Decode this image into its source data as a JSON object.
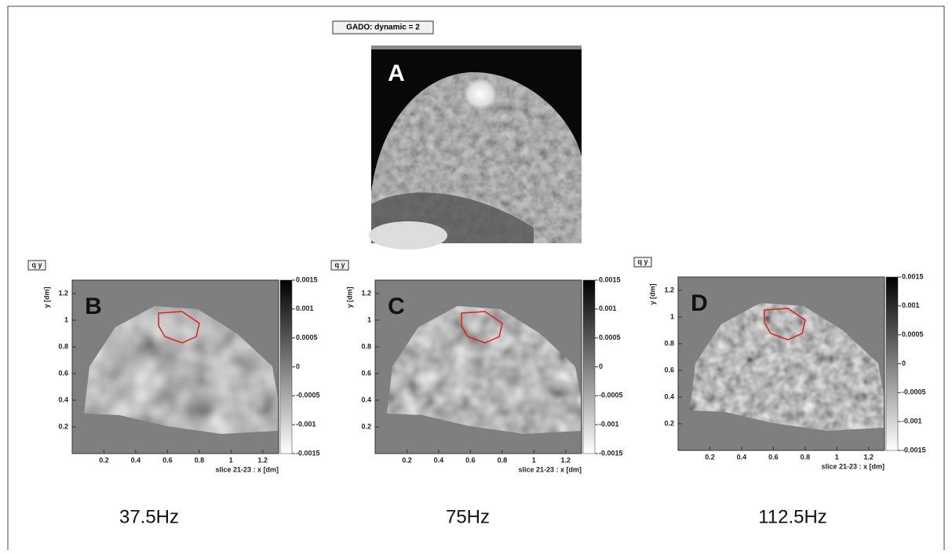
{
  "top_image": {
    "title": "GADO: dynamic = 2",
    "letter": "A"
  },
  "panels": [
    {
      "title": "q y",
      "letter": "B",
      "caption": "37.5Hz",
      "y_label": "y [dm]",
      "x_label": "slice 21-23 : x [dm]",
      "xlim": [
        0,
        1.3
      ],
      "ylim": [
        0,
        1.3
      ],
      "zlim": [
        -0.0015,
        0.0015
      ],
      "xticks": [
        0.2,
        0.4,
        0.6,
        0.8,
        1,
        1.2
      ],
      "yticks": [
        0.2,
        0.4,
        0.6,
        0.8,
        1,
        1.2
      ],
      "zticks": [
        0.0015,
        0.001,
        0.0005,
        0,
        -0.0005,
        -0.001,
        -0.0015
      ]
    },
    {
      "title": "q y",
      "letter": "C",
      "caption": "75Hz",
      "y_label": "y [dm]",
      "x_label": "slice 21-23 : x [dm]",
      "xlim": [
        0,
        1.3
      ],
      "ylim": [
        0,
        1.3
      ],
      "zlim": [
        -0.0015,
        0.0015
      ],
      "xticks": [
        0.2,
        0.4,
        0.6,
        0.8,
        1,
        1.2
      ],
      "yticks": [
        0.2,
        0.4,
        0.6,
        0.8,
        1,
        1.2
      ],
      "zticks": [
        0.0015,
        0.001,
        0.0005,
        0,
        -0.0005,
        -0.001,
        -0.0015
      ]
    },
    {
      "title": "q y",
      "letter": "D",
      "caption": "112.5Hz",
      "y_label": "y [dm]",
      "x_label": "slice 21-23 : x [dm]",
      "xlim": [
        0,
        1.3
      ],
      "ylim": [
        0,
        1.3
      ],
      "zlim": [
        -0.0015,
        0.0015
      ],
      "xticks": [
        0.2,
        0.4,
        0.6,
        0.8,
        1,
        1.2
      ],
      "yticks": [
        0.2,
        0.4,
        0.6,
        0.8,
        1,
        1.2
      ],
      "zticks": [
        0.0015,
        0.001,
        0.0005,
        0,
        -0.0005,
        -0.001,
        -0.0015
      ]
    }
  ]
}
